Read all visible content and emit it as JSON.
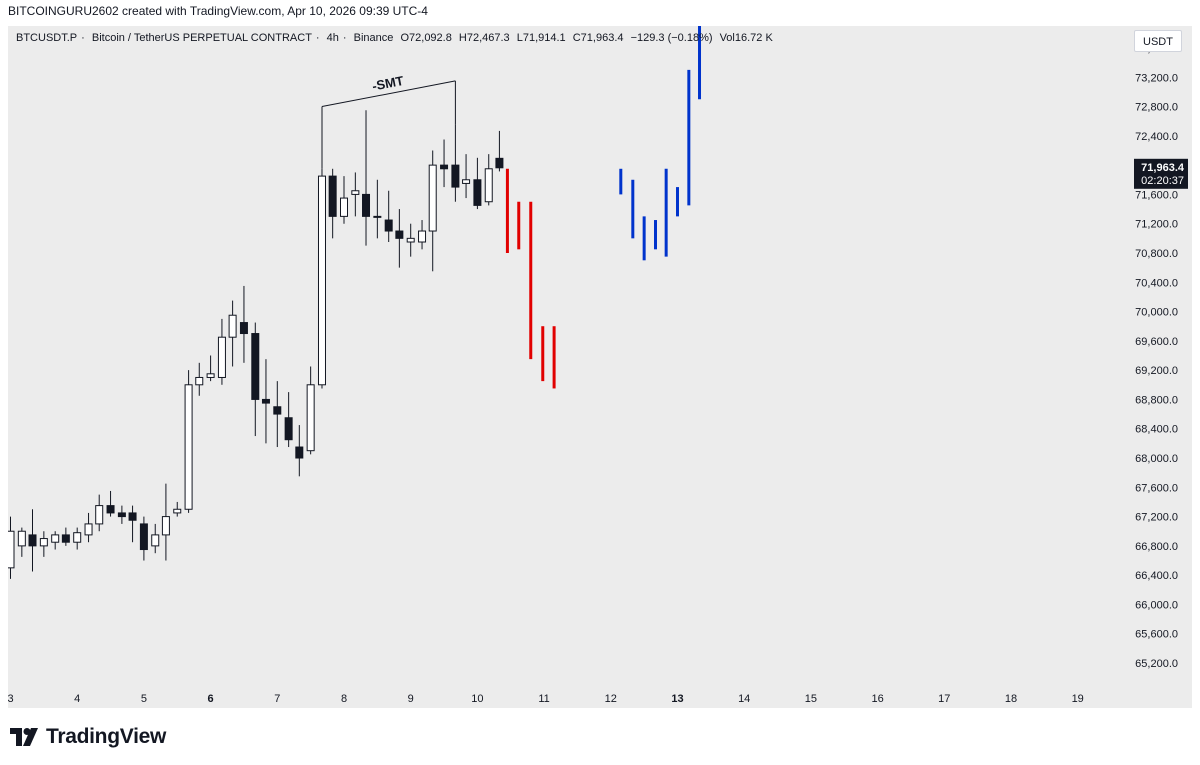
{
  "header": {
    "created_line": "BITCOINGURU2602 created with TradingView.com, Apr 10, 2026 09:39 UTC-4"
  },
  "legend": {
    "symbol": "BTCUSDT.P",
    "description": "Bitcoin / TetherUS PERPETUAL CONTRACT",
    "interval": "4h",
    "exchange": "Binance",
    "sep": "·",
    "open": "O72,092.8",
    "high": "H72,467.3",
    "low": "L71,914.1",
    "close": "C71,963.4",
    "change": "−129.3 (−0.18%)",
    "volume": "Vol16.72 K"
  },
  "currency_button": "USDT",
  "price_badge": {
    "price": "71,963.4",
    "countdown": "02:20:37",
    "value": 71963.4
  },
  "annotation": "-SMT",
  "footer": {
    "brand": "TradingView"
  },
  "chart_data": {
    "type": "candlestick",
    "y_axis": {
      "ylim": [
        64900,
        73900
      ],
      "ticks": [
        "65,200.0",
        "65,600.0",
        "66,000.0",
        "66,400.0",
        "66,800.0",
        "67,200.0",
        "67,600.0",
        "68,000.0",
        "68,400.0",
        "68,800.0",
        "69,200.0",
        "69,600.0",
        "70,000.0",
        "70,400.0",
        "70,800.0",
        "71,200.0",
        "71,600.0",
        "72,000.0",
        "72,400.0",
        "72,800.0",
        "73,200.0",
        "73,600.0"
      ],
      "tick_values": [
        65200,
        65600,
        66000,
        66400,
        66800,
        67200,
        67600,
        68000,
        68400,
        68800,
        69200,
        69600,
        70000,
        70400,
        70800,
        71200,
        71600,
        72000,
        72400,
        72800,
        73200,
        73600
      ]
    },
    "x_axis": {
      "labels": [
        "3",
        "4",
        "5",
        "6",
        "7",
        "8",
        "9",
        "10",
        "11",
        "12",
        "13",
        "14",
        "15",
        "16",
        "17",
        "18",
        "19"
      ],
      "bold": [
        "6",
        "13"
      ],
      "day_range": [
        3,
        19.5
      ]
    },
    "candles": [
      {
        "t": 3.0,
        "o": 66500,
        "h": 67200,
        "l": 66350,
        "c": 67000
      },
      {
        "t": 3.17,
        "o": 66800,
        "h": 67050,
        "l": 66650,
        "c": 67000
      },
      {
        "t": 3.33,
        "o": 66950,
        "h": 67300,
        "l": 66450,
        "c": 66800
      },
      {
        "t": 3.5,
        "o": 66800,
        "h": 67000,
        "l": 66650,
        "c": 66900
      },
      {
        "t": 3.67,
        "o": 66850,
        "h": 67000,
        "l": 66750,
        "c": 66950
      },
      {
        "t": 3.83,
        "o": 66950,
        "h": 67050,
        "l": 66800,
        "c": 66850
      },
      {
        "t": 4.0,
        "o": 66850,
        "h": 67050,
        "l": 66750,
        "c": 66980
      },
      {
        "t": 4.17,
        "o": 66950,
        "h": 67250,
        "l": 66850,
        "c": 67100
      },
      {
        "t": 4.33,
        "o": 67100,
        "h": 67500,
        "l": 67000,
        "c": 67350
      },
      {
        "t": 4.5,
        "o": 67350,
        "h": 67550,
        "l": 67200,
        "c": 67250
      },
      {
        "t": 4.67,
        "o": 67250,
        "h": 67350,
        "l": 67100,
        "c": 67200
      },
      {
        "t": 4.83,
        "o": 67250,
        "h": 67350,
        "l": 66850,
        "c": 67150
      },
      {
        "t": 5.0,
        "o": 67100,
        "h": 67200,
        "l": 66600,
        "c": 66750
      },
      {
        "t": 5.17,
        "o": 66800,
        "h": 67100,
        "l": 66700,
        "c": 66950
      },
      {
        "t": 5.33,
        "o": 66950,
        "h": 67650,
        "l": 66600,
        "c": 67200
      },
      {
        "t": 5.5,
        "o": 67250,
        "h": 67400,
        "l": 67200,
        "c": 67300
      },
      {
        "t": 5.67,
        "o": 67300,
        "h": 69200,
        "l": 67250,
        "c": 69000
      },
      {
        "t": 5.83,
        "o": 69000,
        "h": 69300,
        "l": 68850,
        "c": 69100
      },
      {
        "t": 6.0,
        "o": 69100,
        "h": 69400,
        "l": 69050,
        "c": 69150
      },
      {
        "t": 6.17,
        "o": 69100,
        "h": 69900,
        "l": 69000,
        "c": 69650
      },
      {
        "t": 6.33,
        "o": 69650,
        "h": 70150,
        "l": 69250,
        "c": 69950
      },
      {
        "t": 6.5,
        "o": 69850,
        "h": 70350,
        "l": 69300,
        "c": 69700
      },
      {
        "t": 6.67,
        "o": 69700,
        "h": 69850,
        "l": 68300,
        "c": 68800
      },
      {
        "t": 6.83,
        "o": 68800,
        "h": 69350,
        "l": 68200,
        "c": 68750
      },
      {
        "t": 7.0,
        "o": 68700,
        "h": 69050,
        "l": 68150,
        "c": 68600
      },
      {
        "t": 7.17,
        "o": 68550,
        "h": 68900,
        "l": 68150,
        "c": 68250
      },
      {
        "t": 7.33,
        "o": 68150,
        "h": 68450,
        "l": 67750,
        "c": 68000
      },
      {
        "t": 7.5,
        "o": 68100,
        "h": 69250,
        "l": 68050,
        "c": 69000
      },
      {
        "t": 7.67,
        "o": 69000,
        "h": 71950,
        "l": 68950,
        "c": 71850
      },
      {
        "t": 7.83,
        "o": 71850,
        "h": 71950,
        "l": 71000,
        "c": 71300
      },
      {
        "t": 8.0,
        "o": 71300,
        "h": 71850,
        "l": 71200,
        "c": 71550
      },
      {
        "t": 8.17,
        "o": 71600,
        "h": 71900,
        "l": 71300,
        "c": 71650
      },
      {
        "t": 8.33,
        "o": 71600,
        "h": 72750,
        "l": 70900,
        "c": 71300
      },
      {
        "t": 8.5,
        "o": 71300,
        "h": 71800,
        "l": 71000,
        "c": 71300
      },
      {
        "t": 8.67,
        "o": 71250,
        "h": 71650,
        "l": 70950,
        "c": 71100
      },
      {
        "t": 8.83,
        "o": 71100,
        "h": 71400,
        "l": 70600,
        "c": 71000
      },
      {
        "t": 9.0,
        "o": 70950,
        "h": 71200,
        "l": 70750,
        "c": 71000
      },
      {
        "t": 9.17,
        "o": 70950,
        "h": 71250,
        "l": 70850,
        "c": 71100
      },
      {
        "t": 9.33,
        "o": 71100,
        "h": 72200,
        "l": 70550,
        "c": 72000
      },
      {
        "t": 9.5,
        "o": 72000,
        "h": 72350,
        "l": 71700,
        "c": 71950
      },
      {
        "t": 9.67,
        "o": 72000,
        "h": 72550,
        "l": 71500,
        "c": 71700
      },
      {
        "t": 9.83,
        "o": 71750,
        "h": 72150,
        "l": 71550,
        "c": 71800
      },
      {
        "t": 10.0,
        "o": 71800,
        "h": 72100,
        "l": 71400,
        "c": 71450
      },
      {
        "t": 10.17,
        "o": 71500,
        "h": 72150,
        "l": 71450,
        "c": 71950
      },
      {
        "t": 10.33,
        "o": 72092.8,
        "h": 72467.3,
        "l": 71914.1,
        "c": 71963.4
      }
    ],
    "projection_bars": [
      {
        "t": 10.45,
        "high": 71950,
        "low": 70800,
        "color": "#e10000"
      },
      {
        "t": 10.62,
        "high": 71500,
        "low": 70850,
        "color": "#e10000"
      },
      {
        "t": 10.8,
        "high": 71500,
        "low": 69350,
        "color": "#e10000"
      },
      {
        "t": 10.98,
        "high": 69800,
        "low": 69050,
        "color": "#e10000"
      },
      {
        "t": 11.15,
        "high": 69800,
        "low": 68950,
        "color": "#e10000"
      },
      {
        "t": 12.15,
        "high": 71950,
        "low": 71600,
        "color": "#0033cc"
      },
      {
        "t": 12.33,
        "high": 71800,
        "low": 71000,
        "color": "#0033cc"
      },
      {
        "t": 12.5,
        "high": 71300,
        "low": 70700,
        "color": "#0033cc"
      },
      {
        "t": 12.67,
        "high": 71250,
        "low": 70850,
        "color": "#0033cc"
      },
      {
        "t": 12.83,
        "high": 71950,
        "low": 70750,
        "color": "#0033cc"
      },
      {
        "t": 13.0,
        "high": 71700,
        "low": 71300,
        "color": "#0033cc"
      },
      {
        "t": 13.17,
        "high": 73300,
        "low": 71450,
        "color": "#0033cc"
      },
      {
        "t": 13.33,
        "high": 73900,
        "low": 72900,
        "color": "#0033cc"
      }
    ],
    "smt_lines": [
      {
        "t1": 7.67,
        "p1": 71950,
        "t2": 7.67,
        "p2": 72800
      },
      {
        "t1": 7.67,
        "p1": 72800,
        "t2": 9.67,
        "p2": 73150
      },
      {
        "t1": 9.67,
        "p1": 73150,
        "t2": 9.67,
        "p2": 72550
      }
    ]
  }
}
